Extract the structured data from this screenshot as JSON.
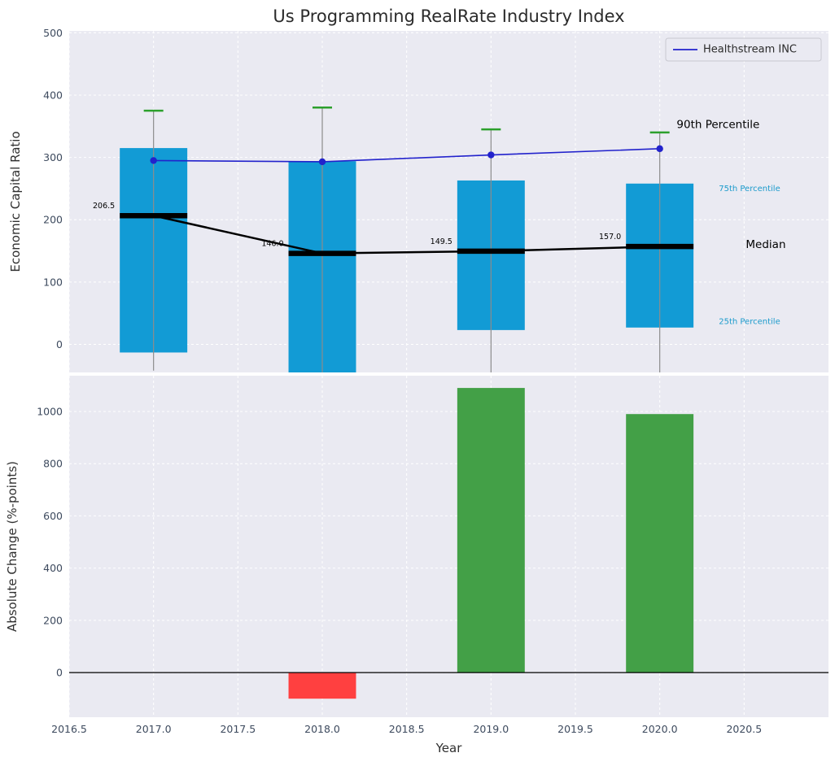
{
  "title": "Us Programming RealRate Industry Index",
  "xlabel": "Year",
  "legend": {
    "items": [
      {
        "label": "Healthstream INC",
        "color": "#2222cc",
        "type": "line"
      }
    ]
  },
  "colors": {
    "plot_bg": "#eaeaf2",
    "grid": "#ffffff",
    "bar_blue": "#129bd5",
    "cap_green": "#2ca02c",
    "bar_green": "#43a047",
    "bar_red": "#ff4040",
    "line_blue": "#2222cc",
    "median_black": "#000000",
    "whisker_gray": "#8c8c8c",
    "annotation_cyan": "#1c9bcc",
    "tick_text": "#3d4a5e"
  },
  "chart_data": [
    {
      "type": "box-bar-with-line",
      "ylabel": "Economic Capital Ratio",
      "ylim": [
        -45,
        503
      ],
      "xlim": [
        2016.5,
        2021.0
      ],
      "yticks": [
        "0",
        "100",
        "200",
        "300",
        "400",
        "500"
      ],
      "years": [
        2017,
        2018,
        2019,
        2020
      ],
      "bar_width_years": 0.4,
      "percentile_bars": [
        {
          "year": 2017,
          "p25": -13,
          "p75": 315,
          "p90": 375,
          "whisker_low": -42,
          "median": 206.5,
          "median_label": "206.5"
        },
        {
          "year": 2018,
          "p25": -45,
          "p75": 294,
          "p90": 380,
          "whisker_low": -50,
          "median": 146.0,
          "median_label": "146.0"
        },
        {
          "year": 2019,
          "p25": 23,
          "p75": 263,
          "p90": 345,
          "whisker_low": -45,
          "median": 149.5,
          "median_label": "149.5"
        },
        {
          "year": 2020,
          "p25": 27,
          "p75": 258,
          "p90": 340,
          "whisker_low": -45,
          "median": 157.0,
          "median_label": "157.0"
        }
      ],
      "series": [
        {
          "name": "Healthstream INC",
          "values": [
            295,
            293,
            304,
            314
          ]
        }
      ],
      "annotations": [
        {
          "id": "90th-percentile",
          "text": "90th Percentile",
          "x": 2020.1,
          "y": 352,
          "color": "#000000",
          "size": 13.5
        },
        {
          "id": "75th-percentile",
          "text": "75th Percentile",
          "x": 2020.35,
          "y": 249,
          "color": "#1c9bcc",
          "size": 10
        },
        {
          "id": "median",
          "text": "Median",
          "x": 2020.51,
          "y": 160,
          "color": "#000000",
          "size": 13.5
        },
        {
          "id": "25th-percentile",
          "text": "25th Percentile",
          "x": 2020.35,
          "y": 36,
          "color": "#1c9bcc",
          "size": 10
        }
      ],
      "legend_position": "top-right",
      "grid": true
    },
    {
      "type": "bar",
      "ylabel": "Absolute Change (%-points)",
      "ylim": [
        -171,
        1137
      ],
      "yticks": [
        "0",
        "200",
        "400",
        "600",
        "800",
        "1000"
      ],
      "categories": [
        2017,
        2018,
        2019,
        2020
      ],
      "values": [
        0,
        -100,
        1090,
        990
      ],
      "bar_colors": [
        "none",
        "#ff4040",
        "#43a047",
        "#43a047"
      ],
      "xticks": [
        2016.5,
        2017.0,
        2017.5,
        2018.0,
        2018.5,
        2019.0,
        2019.5,
        2020.0,
        2020.5
      ],
      "xtick_labels": [
        "2016.5",
        "2017.0",
        "2017.5",
        "2018.0",
        "2018.5",
        "2019.0",
        "2019.5",
        "2020.0",
        "2020.5"
      ],
      "grid": true
    }
  ]
}
